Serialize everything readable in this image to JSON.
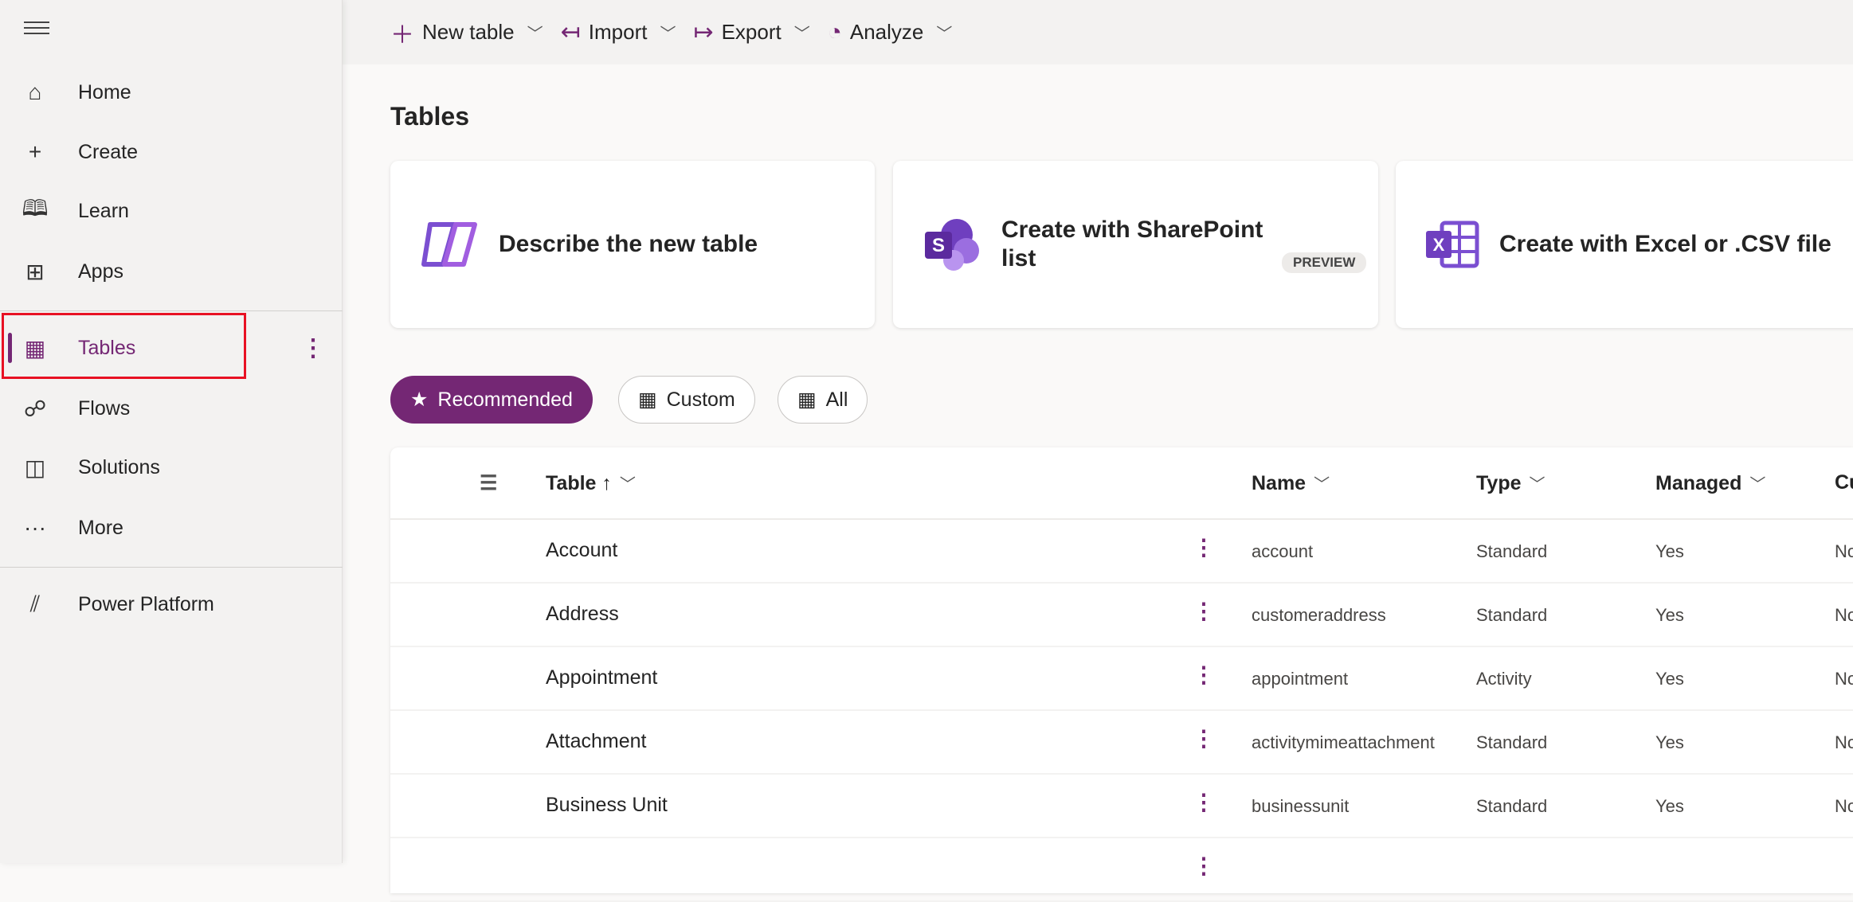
{
  "sidebar": {
    "items": [
      {
        "label": "Home",
        "icon": "home-icon"
      },
      {
        "label": "Create",
        "icon": "plus-icon"
      },
      {
        "label": "Learn",
        "icon": "book-icon"
      },
      {
        "label": "Apps",
        "icon": "apps-icon"
      },
      {
        "label": "Tables",
        "icon": "table-icon",
        "active": true
      },
      {
        "label": "Flows",
        "icon": "flow-icon"
      },
      {
        "label": "Solutions",
        "icon": "solutions-icon"
      },
      {
        "label": "More",
        "icon": "more-icon"
      },
      {
        "label": "Power Platform",
        "icon": "power-platform-icon"
      }
    ]
  },
  "toolbar": {
    "new_table": "New table",
    "import": "Import",
    "export": "Export",
    "analyze": "Analyze"
  },
  "page": {
    "title": "Tables"
  },
  "cards": {
    "describe": "Describe the new table",
    "sharepoint": "Create with SharePoint list",
    "preview": "PREVIEW",
    "excel": "Create with Excel or .CSV file"
  },
  "filters": {
    "recommended": "Recommended",
    "custom": "Custom",
    "all": "All"
  },
  "table": {
    "headers": {
      "table": "Table",
      "sort": "↑",
      "name": "Name",
      "type": "Type",
      "managed": "Managed",
      "custom": "Cu"
    },
    "rows": [
      {
        "table": "Account",
        "name": "account",
        "type": "Standard",
        "managed": "Yes",
        "custom": "No"
      },
      {
        "table": "Address",
        "name": "customeraddress",
        "type": "Standard",
        "managed": "Yes",
        "custom": "No"
      },
      {
        "table": "Appointment",
        "name": "appointment",
        "type": "Activity",
        "managed": "Yes",
        "custom": "No"
      },
      {
        "table": "Attachment",
        "name": "activitymimeattachment",
        "type": "Standard",
        "managed": "Yes",
        "custom": "No"
      },
      {
        "table": "Business Unit",
        "name": "businessunit",
        "type": "Standard",
        "managed": "Yes",
        "custom": "No"
      }
    ]
  },
  "colors": {
    "accent": "#742774",
    "highlight": "#e81123"
  }
}
